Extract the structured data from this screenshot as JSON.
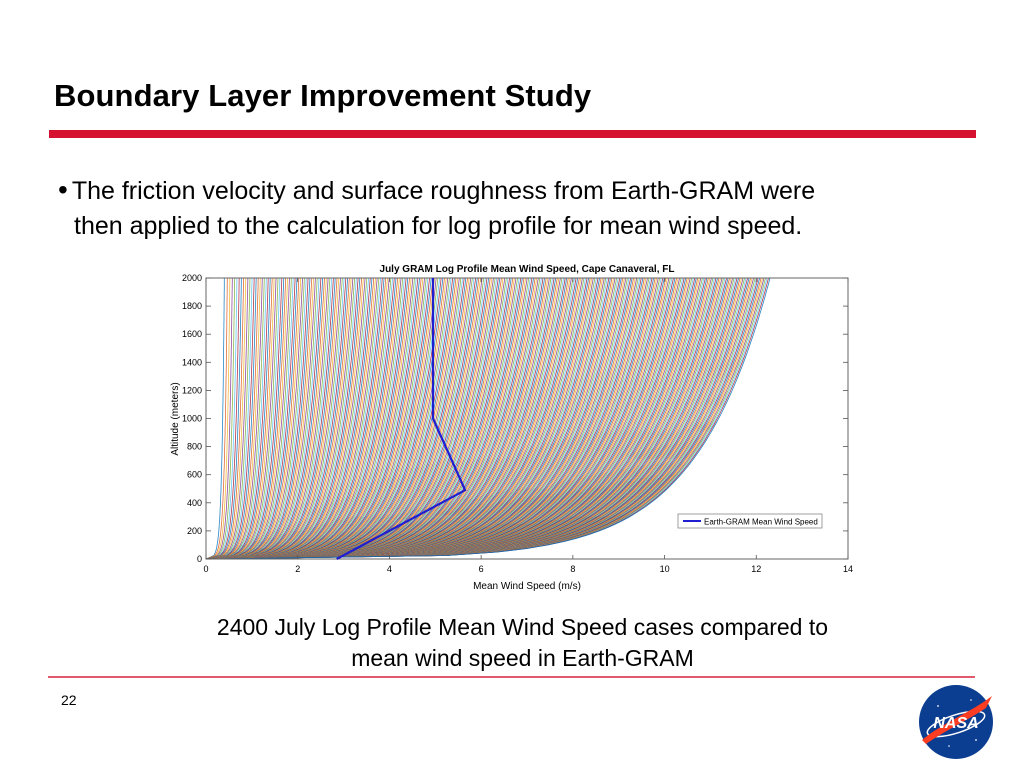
{
  "slide": {
    "title": "Boundary Layer Improvement Study",
    "bullet_line1": "The friction velocity and surface roughness from Earth-GRAM were",
    "bullet_line2": "then applied to the calculation for log profile for mean wind speed.",
    "caption_line1": "2400 July Log Profile Mean Wind Speed cases compared to",
    "caption_line2": "mean wind speed in Earth-GRAM",
    "page_number": "22",
    "logo_text": "NASA",
    "accent_color": "#d5122f"
  },
  "chart_data": {
    "type": "line",
    "title": "July GRAM Log Profile Mean Wind Speed, Cape Canaveral, FL",
    "xlabel": "Mean Wind Speed (m/s)",
    "ylabel": "Altitude (meters)",
    "xlim": [
      0,
      14
    ],
    "ylim": [
      0,
      2000
    ],
    "x_ticks": [
      "0",
      "2",
      "4",
      "6",
      "8",
      "10",
      "12",
      "14"
    ],
    "y_ticks": [
      "0",
      "200",
      "400",
      "600",
      "800",
      "1000",
      "1200",
      "1400",
      "1600",
      "1800",
      "2000"
    ],
    "grid": false,
    "legend_position": "bottom-right",
    "profile_cases": {
      "count": 2400,
      "speed_at_2000m_range": [
        0.4,
        12.3
      ],
      "colors": [
        "#0072bd",
        "#d95319",
        "#edb120",
        "#7e2f8e",
        "#77ac30",
        "#4dbeee",
        "#a2142f"
      ]
    },
    "series": [
      {
        "name": "Earth-GRAM Mean Wind Speed",
        "color": "#1f1fd0",
        "x": [
          2.85,
          5.65,
          4.95,
          4.95
        ],
        "y": [
          0,
          490,
          1000,
          2000
        ]
      }
    ]
  }
}
